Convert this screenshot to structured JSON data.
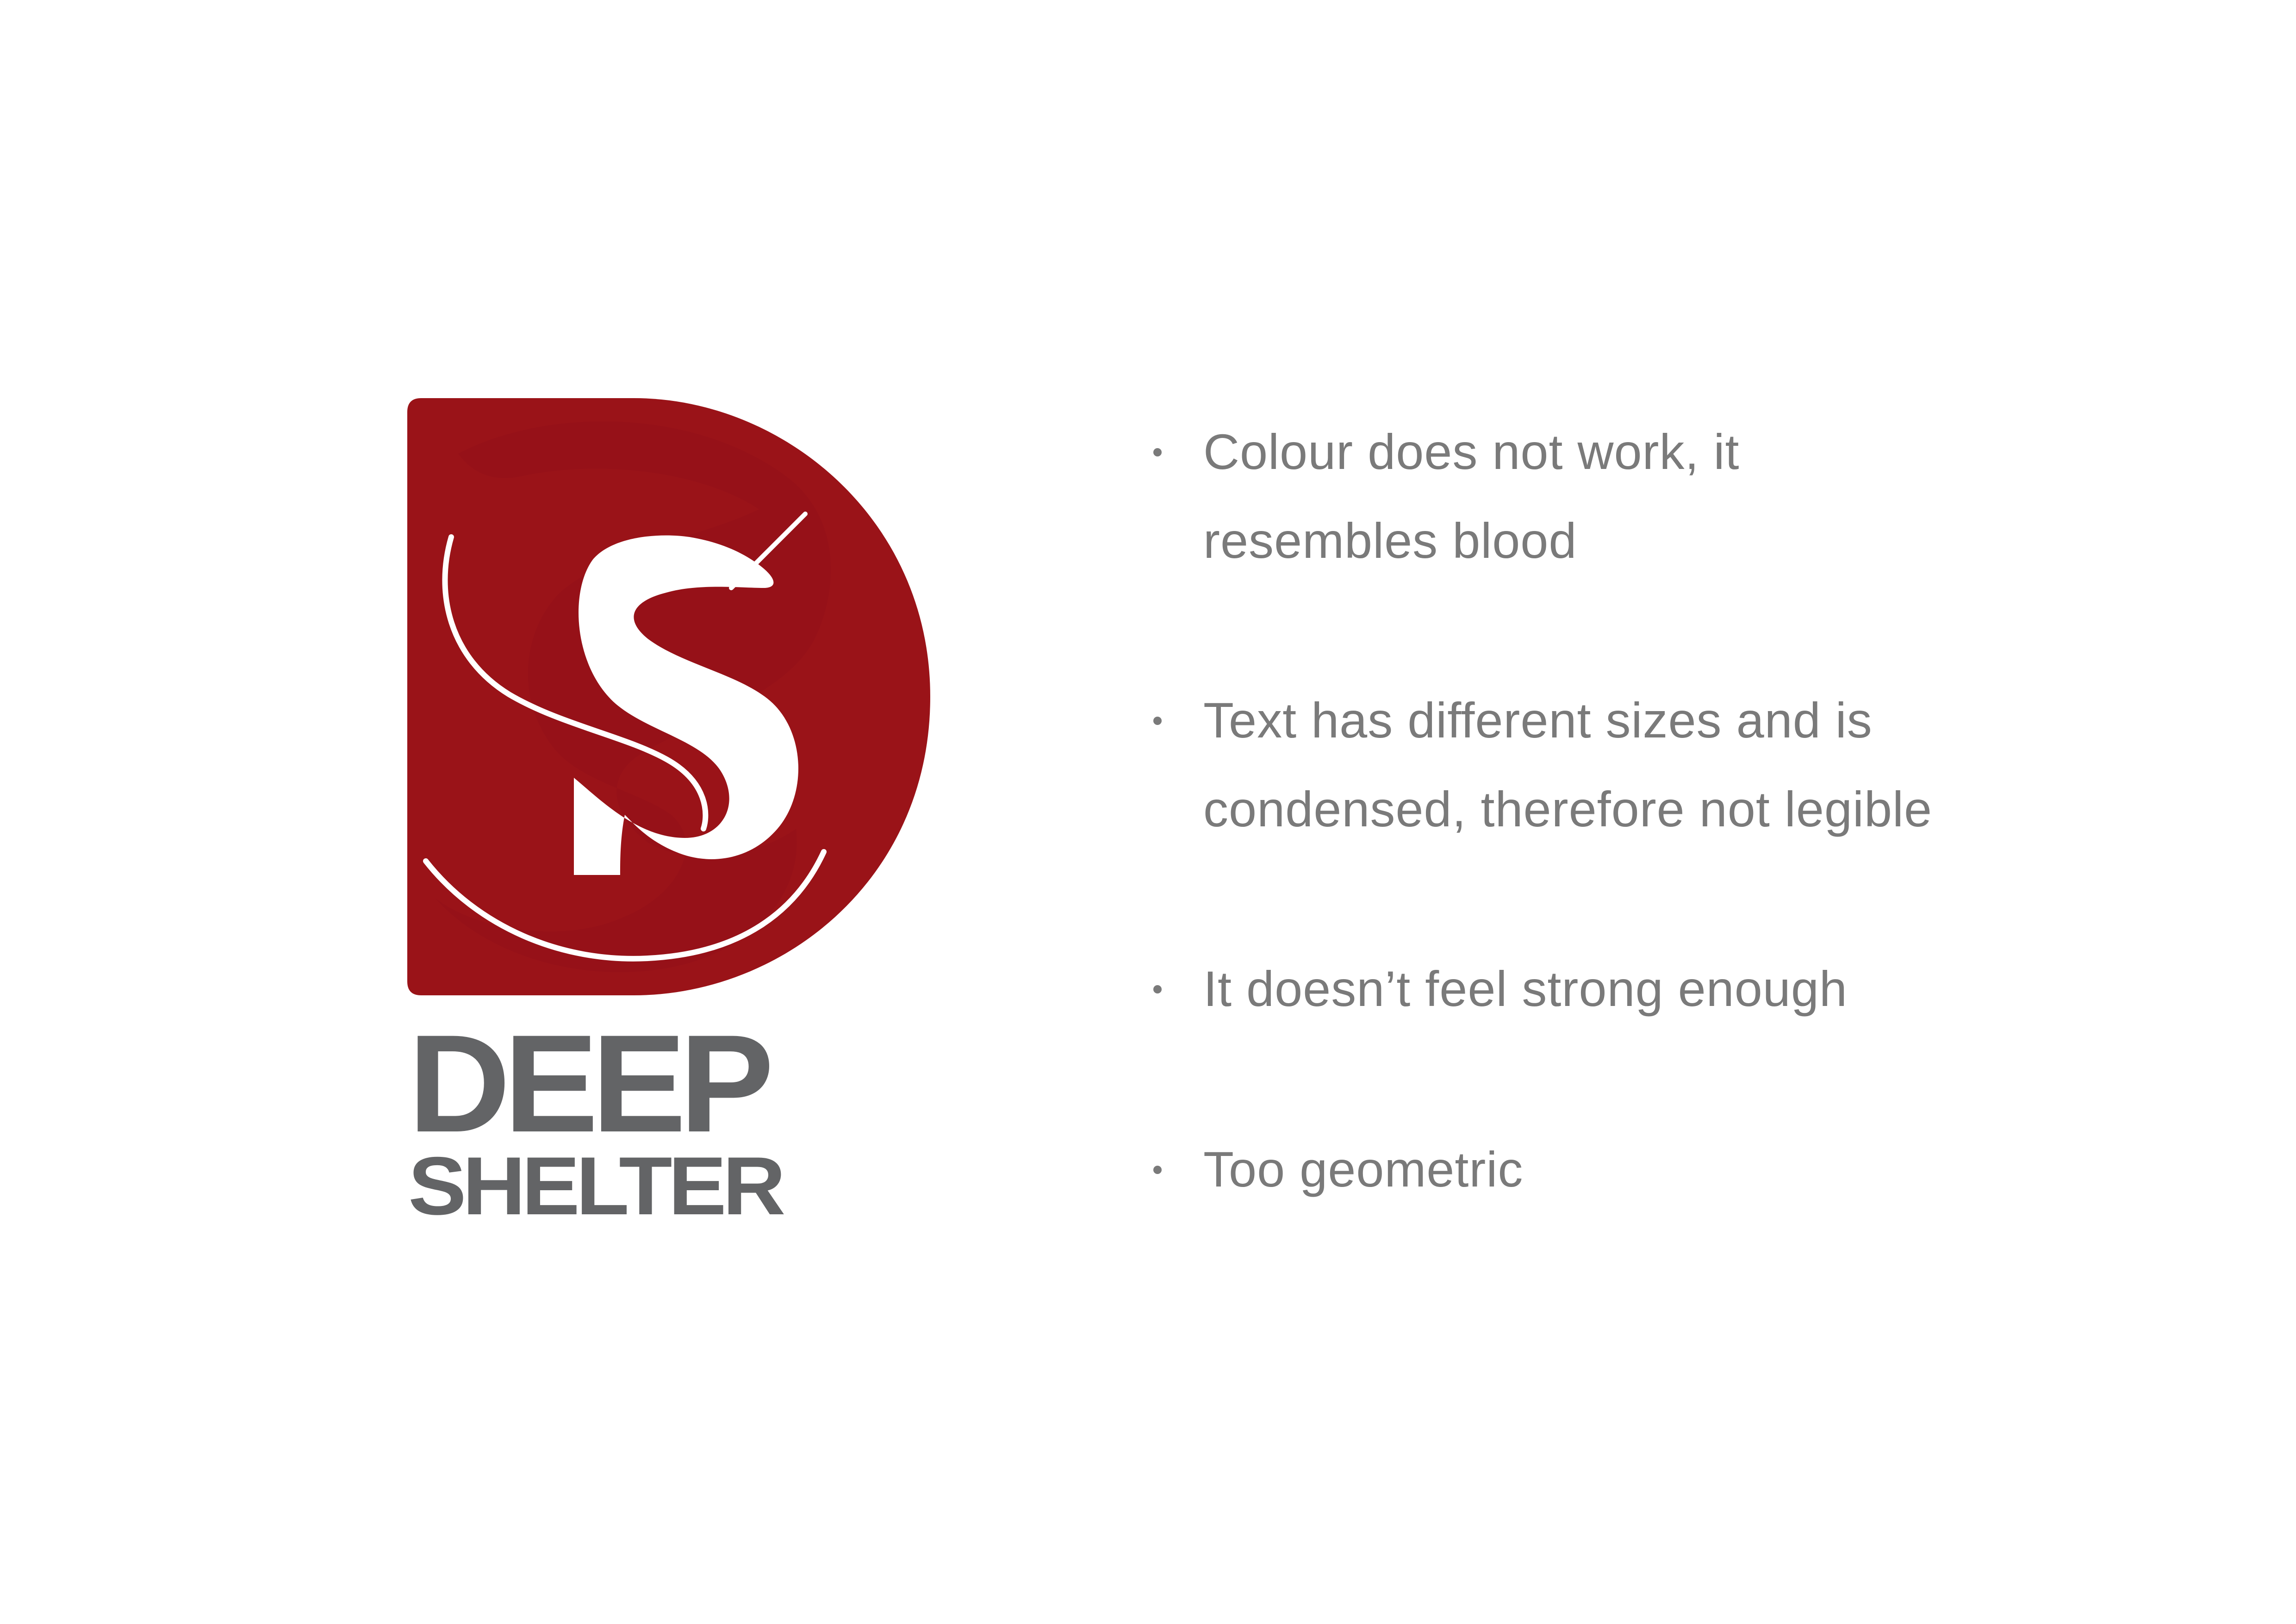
{
  "logo": {
    "name_line1": "DEEP",
    "name_line2": "SHELTER",
    "brand_red": "#9a1318",
    "brand_gray": "#636466"
  },
  "notes": [
    {
      "text": "Colour does not work, it resembles blood"
    },
    {
      "text": "Text has different sizes and is condensed, therefore not legible"
    },
    {
      "text": "It doesn’t feel strong enough"
    },
    {
      "text": "Too geometric"
    }
  ]
}
